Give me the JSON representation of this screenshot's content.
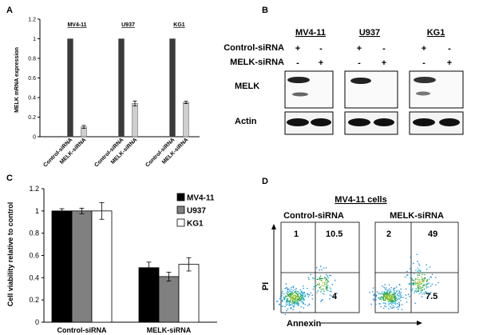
{
  "panels": {
    "A": "A",
    "B": "B",
    "C": "C",
    "D": "D"
  },
  "panel_a": {
    "chart_data": {
      "type": "bar",
      "ylabel": "MELK mRNA expression",
      "ylim": [
        0,
        1.2
      ],
      "yticks": [
        "0",
        "0.2",
        "0.4",
        "0.6",
        "0.8",
        "1",
        "1.2"
      ],
      "groups": [
        "MV4-11",
        "U937",
        "KG1"
      ],
      "categories": [
        "Control-siRNA",
        "MELK-siRNA"
      ],
      "values": [
        [
          1,
          0.1
        ],
        [
          1,
          0.34
        ],
        [
          1,
          0.35
        ]
      ],
      "errors": [
        [
          0,
          0.015
        ],
        [
          0,
          0.025
        ],
        [
          0,
          0.012
        ]
      ],
      "colors": [
        "#3a3a3a",
        "#cfcfcf"
      ]
    }
  },
  "panel_b": {
    "cell_lines": [
      "MV4-11",
      "U937",
      "KG1"
    ],
    "rows": [
      {
        "label": "Control-siRNA",
        "marks": [
          "+",
          "-"
        ]
      },
      {
        "label": "MELK-siRNA",
        "marks": [
          "-",
          "+"
        ]
      }
    ],
    "bands": [
      "MELK",
      "Actin"
    ]
  },
  "panel_c": {
    "chart_data": {
      "type": "bar",
      "ylabel": "Cell viability relative to control",
      "ylim": [
        0,
        1.2
      ],
      "yticks": [
        "0",
        "0.2",
        "0.4",
        "0.6",
        "0.8",
        "1",
        "1.2"
      ],
      "categories": [
        "Control-siRNA",
        "MELK-siRNA"
      ],
      "series": [
        {
          "name": "MV4-11",
          "values": [
            1.0,
            0.49
          ],
          "errors": [
            0.02,
            0.05
          ],
          "color": "#000000"
        },
        {
          "name": "U937",
          "values": [
            1.0,
            0.41
          ],
          "errors": [
            0.025,
            0.04
          ],
          "color": "#808080"
        },
        {
          "name": "KG1",
          "values": [
            1.0,
            0.52
          ],
          "errors": [
            0.075,
            0.06
          ],
          "color": "#ffffff"
        }
      ]
    }
  },
  "panel_d": {
    "title": "MV4-11 cells",
    "plots": [
      {
        "label": "Control-siRNA",
        "q_ul": "1",
        "q_ur": "10.5",
        "q_lr": "4"
      },
      {
        "label": "MELK-siRNA",
        "q_ul": "2",
        "q_ur": "49",
        "q_lr": "7.5"
      }
    ],
    "ylabel": "PI",
    "xlabel": "Annexin"
  }
}
